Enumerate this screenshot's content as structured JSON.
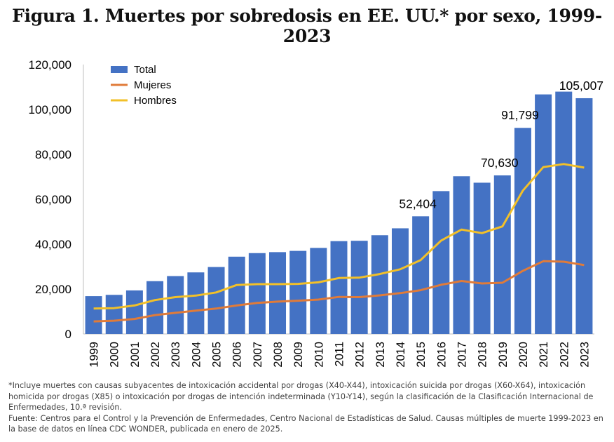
{
  "title": "Figura 1. Muertes por sobredosis en EE. UU.* por sexo, 1999-2023",
  "chart_data": {
    "type": "bar",
    "categories": [
      "1999",
      "2000",
      "2001",
      "2002",
      "2003",
      "2004",
      "2005",
      "2006",
      "2007",
      "2008",
      "2009",
      "2010",
      "2011",
      "2012",
      "2013",
      "2014",
      "2015",
      "2016",
      "2017",
      "2018",
      "2019",
      "2020",
      "2021",
      "2022",
      "2023"
    ],
    "series": [
      {
        "name": "Total",
        "type": "bar",
        "color": "#4472C4",
        "values": [
          16849,
          17415,
          19394,
          23518,
          25785,
          27424,
          29813,
          34425,
          36010,
          36450,
          37004,
          38329,
          41340,
          41502,
          43982,
          47055,
          52404,
          63632,
          70237,
          67367,
          70630,
          91799,
          106699,
          107941,
          105007
        ]
      },
      {
        "name": "Mujeres",
        "type": "line",
        "color": "#E07B39",
        "values": [
          5600,
          5900,
          6700,
          8400,
          9400,
          10400,
          11300,
          12700,
          13800,
          14400,
          14800,
          15300,
          16500,
          16400,
          17200,
          18200,
          19500,
          21900,
          23600,
          22500,
          22800,
          28100,
          32400,
          32200,
          30700
        ]
      },
      {
        "name": "Hombres",
        "type": "line",
        "color": "#F2C029",
        "values": [
          11300,
          11500,
          12700,
          15100,
          16400,
          17100,
          18500,
          21800,
          22200,
          22200,
          22300,
          23000,
          24900,
          25100,
          26700,
          28800,
          32900,
          41600,
          46500,
          44900,
          47900,
          63800,
          74300,
          75700,
          74100
        ]
      }
    ],
    "data_labels": [
      {
        "category": "2015",
        "text": "52,404"
      },
      {
        "category": "2019",
        "text": "70,630"
      },
      {
        "category": "2020",
        "text": "91,799"
      },
      {
        "category": "2023",
        "text": "105,007"
      }
    ],
    "yticks": [
      "0",
      "20,000",
      "40,000",
      "60,000",
      "80,000",
      "100,000",
      "120,000"
    ],
    "ylim": [
      0,
      120000
    ],
    "xlabel": "",
    "ylabel": "",
    "grid": false,
    "legend_position": "top-left"
  },
  "notes": {
    "footnote": "*Incluye muertes con causas subyacentes de intoxicación accidental por drogas (X40-X44), intoxicación suicida por drogas (X60-X64), intoxicación homicida por drogas (X85) o intoxicación por drogas de intención indeterminada (Y10-Y14), según la clasificación de la Clasificación Internacional de Enfermedades, 10.ª revisión.",
    "source": "Fuente: Centros para el Control y la Prevención de Enfermedades, Centro Nacional de Estadísticas de Salud. Causas múltiples de muerte 1999-2023 en la base de datos en línea CDC WONDER, publicada en enero de 2025."
  }
}
